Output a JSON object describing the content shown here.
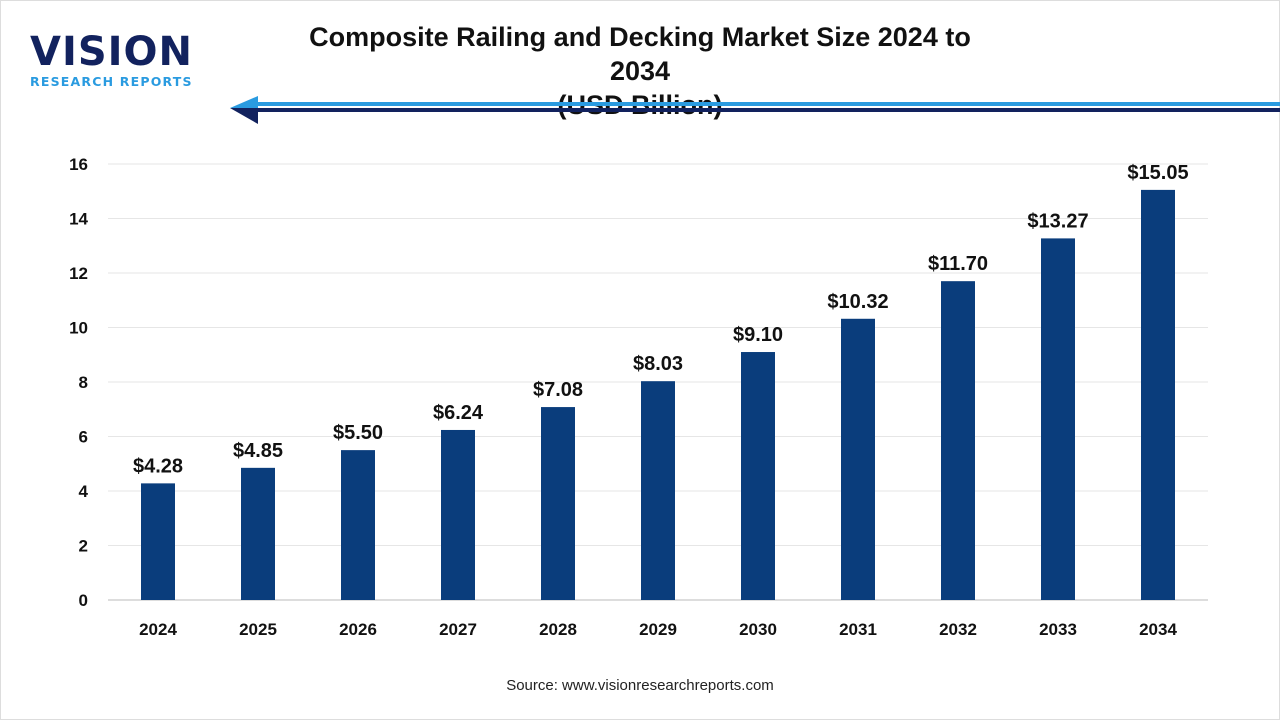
{
  "logo": {
    "word": "VISION",
    "sub": "RESEARCH REPORTS"
  },
  "colors": {
    "bar": "#0a3d7c",
    "arrow_light": "#2a9be0",
    "arrow_dark": "#12225e"
  },
  "source": "Source: www.visionresearchreports.com",
  "chart_data": {
    "type": "bar",
    "title": "Composite Railing and Decking Market Size 2024 to 2034",
    "subtitle": "(USD Billion)",
    "categories": [
      "2024",
      "2025",
      "2026",
      "2027",
      "2028",
      "2029",
      "2030",
      "2031",
      "2032",
      "2033",
      "2034"
    ],
    "values": [
      4.28,
      4.85,
      5.5,
      6.24,
      7.08,
      8.03,
      9.1,
      10.32,
      11.7,
      13.27,
      15.05
    ],
    "data_labels": [
      "$4.28",
      "$4.85",
      "$5.50",
      "$6.24",
      "$7.08",
      "$8.03",
      "$9.10",
      "$10.32",
      "$11.70",
      "$13.27",
      "$15.05"
    ],
    "yticks": [
      0,
      2,
      4,
      6,
      8,
      10,
      12,
      14,
      16
    ],
    "ylim": [
      0,
      16
    ],
    "grid": true,
    "xlabel": "",
    "ylabel": ""
  }
}
